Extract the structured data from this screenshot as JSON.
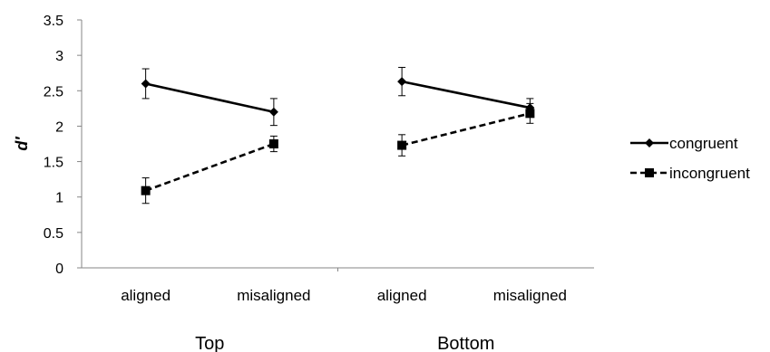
{
  "chart_data": {
    "type": "line",
    "ylabel": "d′",
    "ylim": [
      0,
      3.5
    ],
    "yticks": [
      "0",
      "0.5",
      "1",
      "1.5",
      "2",
      "2.5",
      "3",
      "3.5"
    ],
    "ytick_values": [
      0,
      0.5,
      1,
      1.5,
      2,
      2.5,
      3,
      3.5
    ],
    "grid": false,
    "legend_position": "right",
    "groups": [
      {
        "name": "Top",
        "categories": [
          "aligned",
          "misaligned"
        ]
      },
      {
        "name": "Bottom",
        "categories": [
          "aligned",
          "misaligned"
        ]
      }
    ],
    "series": [
      {
        "name": "congruent",
        "marker": "diamond",
        "line_style": "solid",
        "color": "#000000",
        "values": [
          [
            2.6,
            2.2
          ],
          [
            2.63,
            2.26
          ]
        ],
        "error": [
          [
            0.21,
            0.19
          ],
          [
            0.2,
            0.13
          ]
        ]
      },
      {
        "name": "incongruent",
        "marker": "square",
        "line_style": "dashed",
        "color": "#000000",
        "values": [
          [
            1.09,
            1.75
          ],
          [
            1.73,
            2.18
          ]
        ],
        "error": [
          [
            0.18,
            0.11
          ],
          [
            0.15,
            0.14
          ]
        ]
      }
    ]
  }
}
